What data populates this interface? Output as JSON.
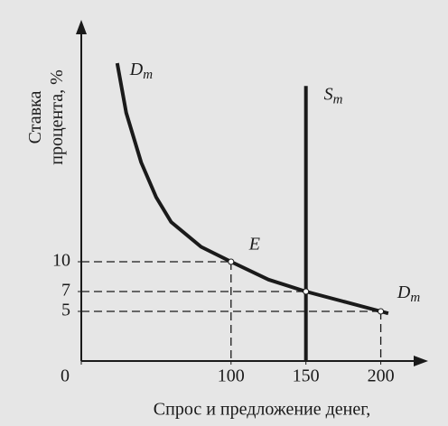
{
  "chart_data": {
    "type": "line",
    "x_label": "Спрос и предложение денег,",
    "y_label": "Ставка процента, %",
    "xlim": [
      0,
      228
    ],
    "ylim": [
      0,
      34
    ],
    "xticks": [
      0,
      100,
      150,
      200
    ],
    "yticks": [
      5,
      7,
      10
    ],
    "series": [
      {
        "name": "Dm",
        "color": "#1a1a1a",
        "x": [
          24,
          30,
          40,
          50,
          60,
          80,
          100,
          125,
          150,
          175,
          200,
          205
        ],
        "values": [
          30,
          25,
          20,
          16.5,
          14,
          11.5,
          10,
          8.2,
          7,
          6,
          5,
          4.8
        ]
      },
      {
        "name": "Sm",
        "color": "#1a1a1a",
        "x": [
          150,
          150
        ],
        "values": [
          0,
          27.7
        ]
      }
    ],
    "reference_points": [
      {
        "label": "E",
        "x": 100,
        "y": 10
      },
      {
        "x": 150,
        "y": 7
      },
      {
        "x": 200,
        "y": 5
      }
    ]
  }
}
